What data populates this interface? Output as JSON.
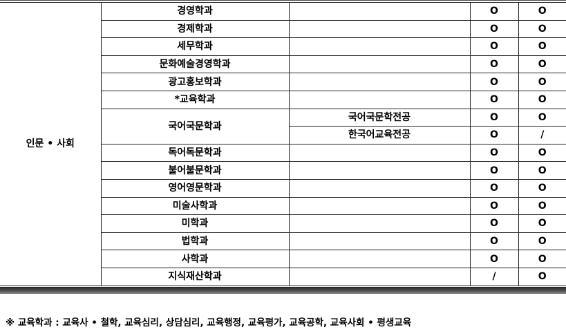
{
  "category": "인문 • 사회",
  "rows": [
    {
      "major": "경영학과",
      "track": "",
      "a": "O",
      "b": "O"
    },
    {
      "major": "경제학과",
      "track": "",
      "a": "O",
      "b": "O"
    },
    {
      "major": "세무학과",
      "track": "",
      "a": "O",
      "b": "O"
    },
    {
      "major": "문화예술경영학과",
      "track": "",
      "a": "O",
      "b": "O"
    },
    {
      "major": "광고홍보학과",
      "track": "",
      "a": "O",
      "b": "O"
    },
    {
      "major": "*교육학과",
      "track": "",
      "a": "O",
      "b": "O"
    },
    {
      "major": "국어국문학과",
      "track": "국어국문학전공",
      "a": "O",
      "b": "O"
    },
    {
      "major": "",
      "track": "한국어교육전공",
      "a": "O",
      "b": "/"
    },
    {
      "major": "독어독문학과",
      "track": "",
      "a": "O",
      "b": "O"
    },
    {
      "major": "불어불문학과",
      "track": "",
      "a": "O",
      "b": "O"
    },
    {
      "major": "영어영문학과",
      "track": "",
      "a": "O",
      "b": "O"
    },
    {
      "major": "미술사학과",
      "track": "",
      "a": "O",
      "b": "O"
    },
    {
      "major": "미학과",
      "track": "",
      "a": "O",
      "b": "O"
    },
    {
      "major": "법학과",
      "track": "",
      "a": "O",
      "b": "O"
    },
    {
      "major": "사학과",
      "track": "",
      "a": "O",
      "b": "O"
    },
    {
      "major": "지식재산학과",
      "track": "",
      "a": "/",
      "b": "O"
    }
  ],
  "footnote": "※ 교육학과 : 교육사 • 철학, 교육심리, 상담심리, 교육행정, 교육평가, 교육공학, 교육사회 • 평생교육"
}
